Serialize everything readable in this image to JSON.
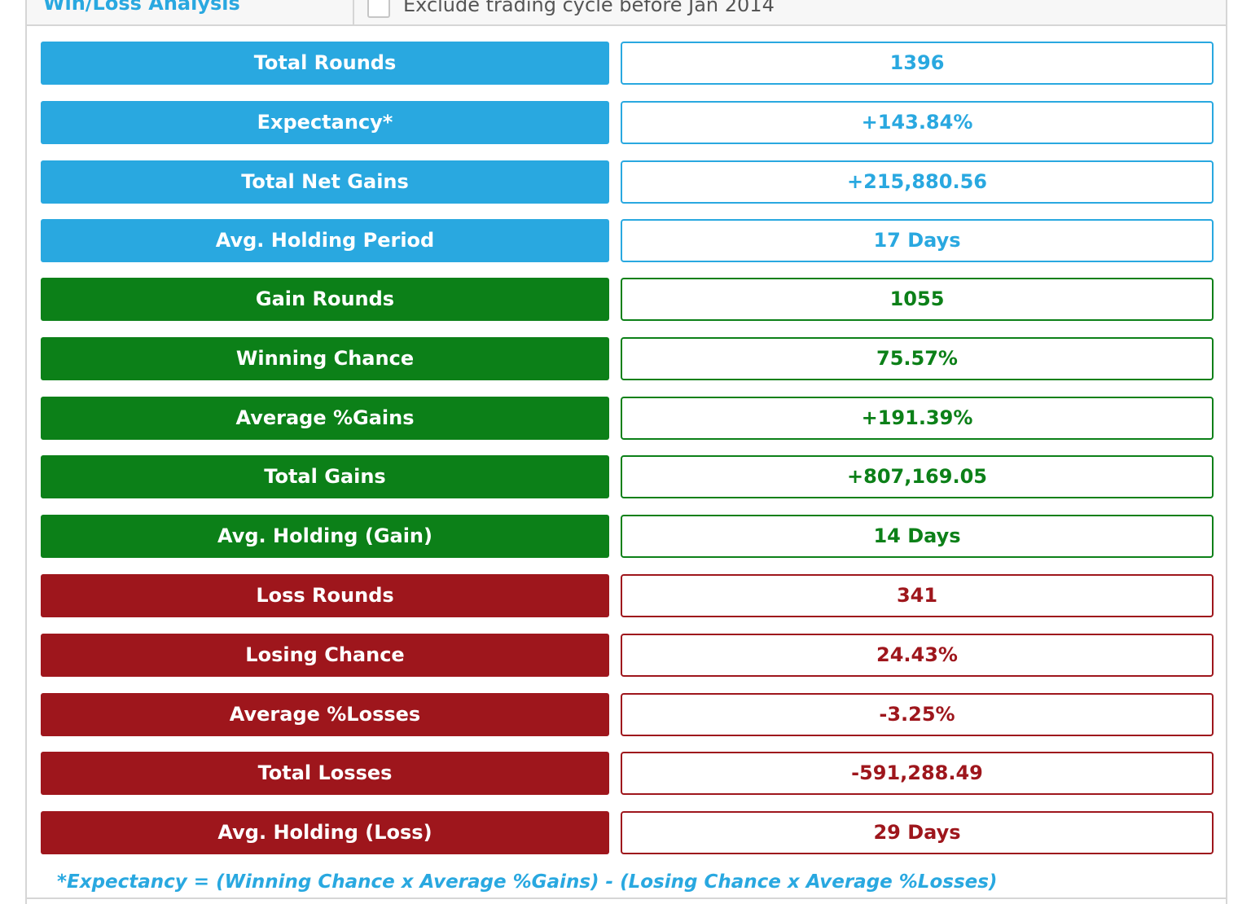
{
  "header": {
    "title": "Win/Loss Analysis",
    "checkbox_label": "Exclude trading cycle before Jan 2014",
    "checkbox_checked": false
  },
  "colors": {
    "general": "#29a8e0",
    "gain": "#0c8018",
    "loss": "#9e161c"
  },
  "stats": [
    {
      "label": "Total Rounds",
      "value": "1396",
      "group": "general"
    },
    {
      "label": "Expectancy*",
      "value": "+143.84%",
      "group": "general"
    },
    {
      "label": "Total Net Gains",
      "value": "+215,880.56",
      "group": "general"
    },
    {
      "label": "Avg. Holding Period",
      "value": "17 Days",
      "group": "general"
    },
    {
      "label": "Gain Rounds",
      "value": "1055",
      "group": "gain"
    },
    {
      "label": "Winning Chance",
      "value": "75.57%",
      "group": "gain"
    },
    {
      "label": "Average %Gains",
      "value": "+191.39%",
      "group": "gain"
    },
    {
      "label": "Total Gains",
      "value": "+807,169.05",
      "group": "gain"
    },
    {
      "label": "Avg. Holding (Gain)",
      "value": "14 Days",
      "group": "gain"
    },
    {
      "label": "Loss Rounds",
      "value": "341",
      "group": "loss"
    },
    {
      "label": "Losing Chance",
      "value": "24.43%",
      "group": "loss"
    },
    {
      "label": "Average %Losses",
      "value": "-3.25%",
      "group": "loss"
    },
    {
      "label": "Total Losses",
      "value": "-591,288.49",
      "group": "loss"
    },
    {
      "label": "Avg. Holding (Loss)",
      "value": "29 Days",
      "group": "loss"
    }
  ],
  "footnote": "*Expectancy = (Winning Chance x Average %Gains) - (Losing Chance x Average %Losses)"
}
